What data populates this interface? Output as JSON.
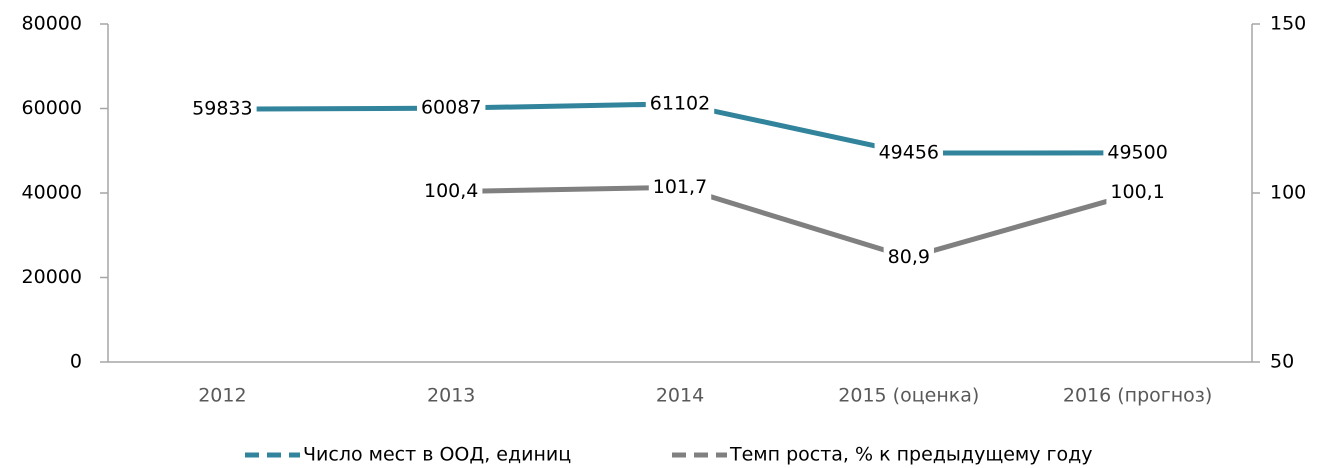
{
  "chart_data": {
    "type": "line",
    "categories": [
      "2012",
      "2013",
      "2014",
      "2015 (оценка)",
      "2016 (прогноз)"
    ],
    "series": [
      {
        "name": "Число мест в ООД, единиц",
        "color": "#31849b",
        "values": [
          59833,
          60087,
          61102,
          49456,
          49500
        ]
      },
      {
        "name": "Темп роста, % к предыдущему году",
        "color": "#808080",
        "axis": "y2",
        "values": [
          null,
          100.4,
          101.7,
          80.9,
          100.1
        ],
        "value_labels": [
          null,
          "100,4",
          "101,7",
          "80,9",
          "100,1"
        ]
      }
    ],
    "ylim": [
      0,
      80000
    ],
    "yticks": [
      0,
      20000,
      40000,
      60000,
      80000
    ],
    "y2lim": [
      50,
      150
    ],
    "y2ticks": [
      50,
      100,
      150
    ],
    "legend": "bottom"
  }
}
